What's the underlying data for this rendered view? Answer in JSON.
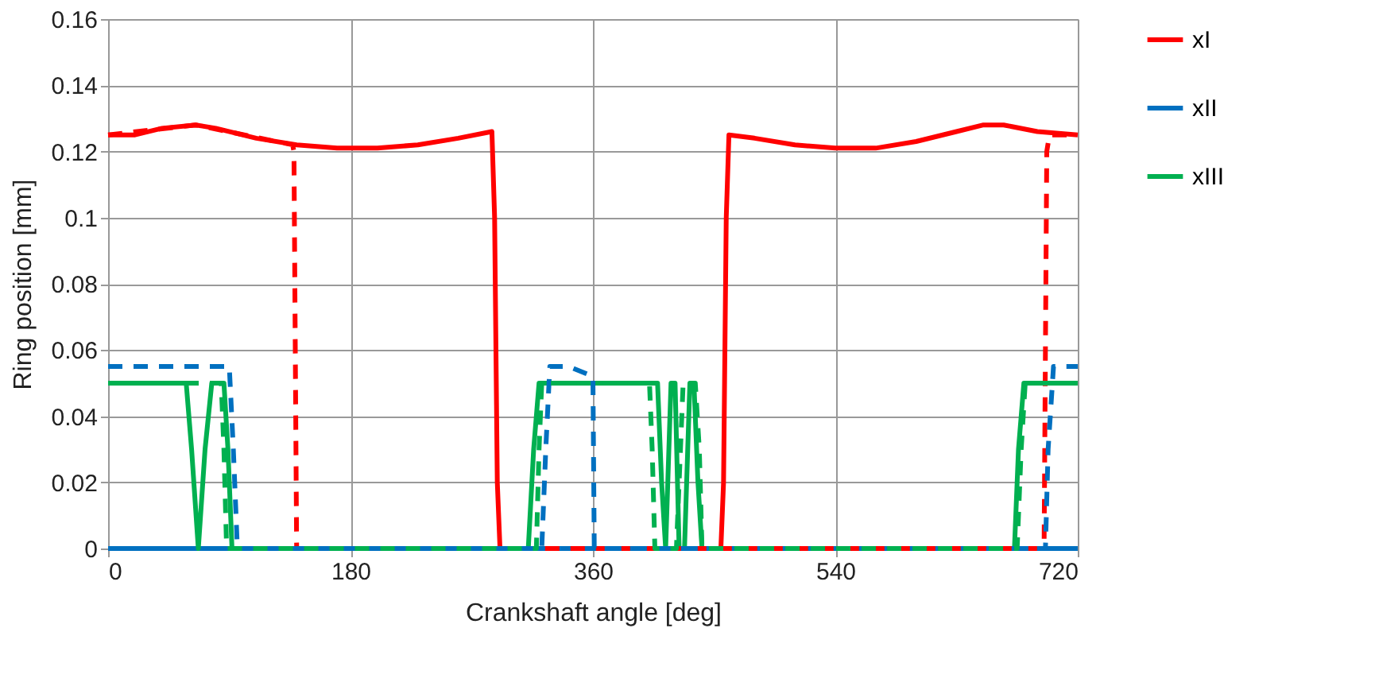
{
  "chart_data": {
    "type": "line",
    "xlabel": "Crankshaft angle [deg]",
    "ylabel": "Ring position [mm]",
    "xlim": [
      0,
      720
    ],
    "xticks": [
      0,
      180,
      360,
      540,
      720
    ],
    "ylim": [
      0,
      0.16
    ],
    "yticks": [
      0,
      0.02,
      0.04,
      0.06,
      0.08,
      0.1,
      0.12,
      0.14,
      0.16
    ],
    "grid": true,
    "legend": "right",
    "marker": "none",
    "series": [
      {
        "name": "xI",
        "color": "#ff0000",
        "line_style": "solid",
        "x": [
          0,
          20,
          40,
          65,
          80,
          110,
          140,
          170,
          200,
          230,
          260,
          285,
          287,
          289,
          291,
          455,
          457,
          459,
          461,
          480,
          510,
          540,
          570,
          600,
          630,
          650,
          665,
          690,
          720
        ],
        "values": [
          0.125,
          0.125,
          0.127,
          0.128,
          0.127,
          0.124,
          0.122,
          0.121,
          0.121,
          0.122,
          0.124,
          0.126,
          0.1,
          0.02,
          0,
          0,
          0.02,
          0.1,
          0.125,
          0.124,
          0.122,
          0.121,
          0.121,
          0.123,
          0.126,
          0.128,
          0.128,
          0.126,
          0.125
        ]
      },
      {
        "name": "xII",
        "color": "#0070c0",
        "line_style": "solid",
        "x": [
          0,
          720
        ],
        "values": [
          0,
          0
        ]
      },
      {
        "name": "xIII",
        "color": "#00b050",
        "line_style": "solid",
        "x": [
          0,
          58,
          62,
          67,
          72,
          77,
          86,
          89,
          92,
          312,
          316,
          320,
          408,
          411,
          414,
          418,
          421,
          424,
          428,
          432,
          435,
          438,
          441,
          673,
          676,
          680,
          720
        ],
        "values": [
          0.05,
          0.05,
          0.03,
          0,
          0.03,
          0.05,
          0.05,
          0.03,
          0,
          0,
          0.03,
          0.05,
          0.05,
          0.02,
          0,
          0.05,
          0.05,
          0,
          0,
          0.05,
          0.05,
          0.02,
          0,
          0,
          0.03,
          0.05,
          0.05
        ]
      },
      {
        "color": "#ff0000",
        "line_style": "dashed",
        "x": [
          0,
          65,
          137,
          138,
          140,
          695,
          697,
          699,
          720
        ],
        "values": [
          0.125,
          0.128,
          0.122,
          0.12,
          0,
          0,
          0.12,
          0.125,
          0.125
        ]
      },
      {
        "color": "#0070c0",
        "line_style": "dashed",
        "x": [
          0,
          90,
          93,
          96,
          322,
          325,
          328,
          342,
          360,
          361,
          696,
          698,
          702,
          720
        ],
        "values": [
          0.055,
          0.055,
          0.03,
          0,
          0,
          0.03,
          0.055,
          0.055,
          0.052,
          0,
          0,
          0.03,
          0.055,
          0.055
        ]
      },
      {
        "color": "#00b050",
        "line_style": "dashed",
        "x": [
          0,
          84,
          86,
          88,
          318,
          320,
          322,
          402,
          404,
          406,
          422,
          425,
          427,
          436,
          439,
          441,
          675,
          678,
          681,
          720
        ],
        "values": [
          0.05,
          0.05,
          0.03,
          0,
          0,
          0.03,
          0.05,
          0.05,
          0.03,
          0,
          0,
          0.03,
          0.05,
          0.05,
          0.03,
          0,
          0,
          0.03,
          0.05,
          0.05
        ]
      }
    ]
  }
}
